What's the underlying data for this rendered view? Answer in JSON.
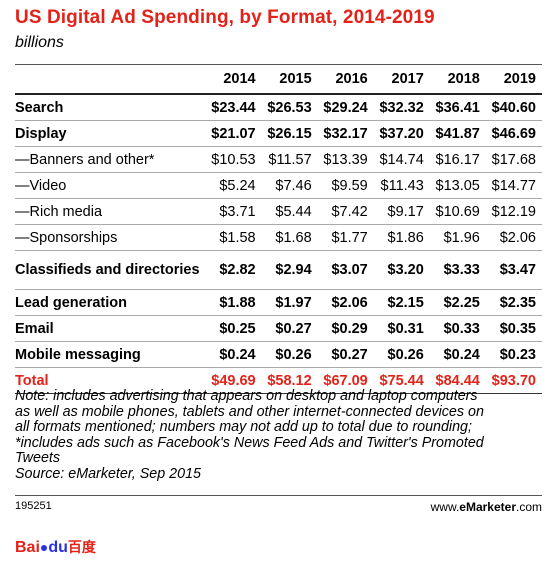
{
  "title": "US Digital Ad Spending, by Format, 2014-2019",
  "subtitle": "billions",
  "chart_data": {
    "type": "table",
    "columns": [
      "2014",
      "2015",
      "2016",
      "2017",
      "2018",
      "2019"
    ],
    "rows": [
      {
        "label": "Search",
        "values": [
          "$23.44",
          "$26.53",
          "$29.24",
          "$32.32",
          "$36.41",
          "$40.60"
        ],
        "style": "bold"
      },
      {
        "label": "Display",
        "values": [
          "$21.07",
          "$26.15",
          "$32.17",
          "$37.20",
          "$41.87",
          "$46.69"
        ],
        "style": "bold"
      },
      {
        "label": "—Banners and other*",
        "values": [
          "$10.53",
          "$11.57",
          "$13.39",
          "$14.74",
          "$16.17",
          "$17.68"
        ],
        "style": "sub"
      },
      {
        "label": "—Video",
        "values": [
          "$5.24",
          "$7.46",
          "$9.59",
          "$11.43",
          "$13.05",
          "$14.77"
        ],
        "style": "sub"
      },
      {
        "label": "—Rich media",
        "values": [
          "$3.71",
          "$5.44",
          "$7.42",
          "$9.17",
          "$10.69",
          "$12.19"
        ],
        "style": "sub"
      },
      {
        "label": "—Sponsorships",
        "values": [
          "$1.58",
          "$1.68",
          "$1.77",
          "$1.86",
          "$1.96",
          "$2.06"
        ],
        "style": "sub"
      },
      {
        "label": "Classifieds and directories",
        "values": [
          "$2.82",
          "$2.94",
          "$3.07",
          "$3.20",
          "$3.33",
          "$3.47"
        ],
        "style": "bold-tall"
      },
      {
        "label": "Lead generation",
        "values": [
          "$1.88",
          "$1.97",
          "$2.06",
          "$2.15",
          "$2.25",
          "$2.35"
        ],
        "style": "bold"
      },
      {
        "label": "Email",
        "values": [
          "$0.25",
          "$0.27",
          "$0.29",
          "$0.31",
          "$0.33",
          "$0.35"
        ],
        "style": "bold"
      },
      {
        "label": "Mobile messaging",
        "values": [
          "$0.24",
          "$0.26",
          "$0.27",
          "$0.26",
          "$0.24",
          "$0.23"
        ],
        "style": "bold"
      },
      {
        "label": "Total",
        "values": [
          "$49.69",
          "$58.12",
          "$67.09",
          "$75.44",
          "$84.44",
          "$93.70"
        ],
        "style": "total"
      }
    ]
  },
  "note_lines": [
    "Note: includes advertising that appears on desktop and laptop computers",
    "as well as mobile phones, tablets and other internet-connected devices on",
    "all formats mentioned; numbers may not add up to total due to rounding;",
    "*includes ads such as Facebook's News Feed Ads and Twitter's Promoted",
    "Tweets",
    "Source: eMarketer, Sep 2015"
  ],
  "footer": {
    "chart_id": "195251",
    "site_prefix": "www.",
    "site_brand": "eMarketer",
    "site_suffix": ".com"
  },
  "watermark": {
    "bai": "Bai",
    "du": "du",
    "cn": "百度"
  },
  "colors": {
    "accent": "#e2231a"
  }
}
